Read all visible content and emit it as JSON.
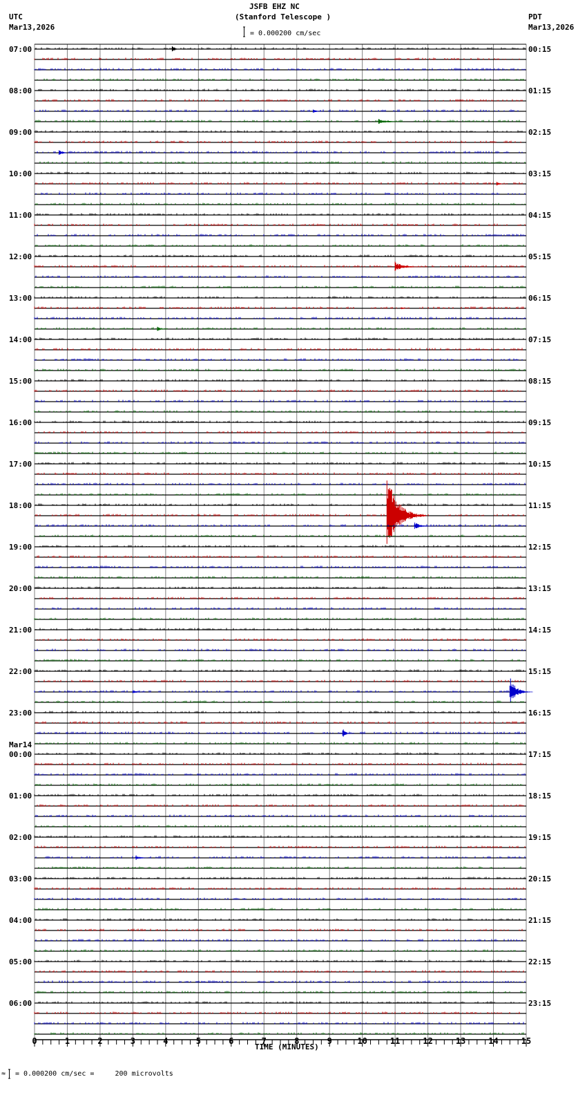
{
  "header": {
    "station": "JSFB EHZ NC",
    "site": "(Stanford Telescope )",
    "scale_label": "= 0.000200 cm/sec",
    "left_tz": "UTC",
    "left_date": "Mar13,2026",
    "right_tz": "PDT",
    "right_date": "Mar13,2026"
  },
  "footer": {
    "scale_note": "= 0.000200 cm/sec =     200 microvolts",
    "prefix": "≈"
  },
  "colors": {
    "trace_cycle": [
      "#000000",
      "#cc0000",
      "#0000cc",
      "#006600"
    ],
    "baseline": "#000000",
    "grid": "#808080"
  },
  "chart_data": {
    "type": "line",
    "title": "JSFB EHZ NC (Stanford Telescope )",
    "subtitle": "Helicorder seismogram, 15-minute lines",
    "xlabel": "TIME (MINUTES)",
    "ylabel": "",
    "x_ticks": [
      "0",
      "1",
      "2",
      "3",
      "4",
      "5",
      "6",
      "7",
      "8",
      "9",
      "10",
      "11",
      "12",
      "13",
      "14",
      "15"
    ],
    "xlim": [
      0,
      15
    ],
    "minor_ticks_per_minute": 4,
    "grid": true,
    "rows_per_hour": 4,
    "row_count": 96,
    "left_hour_labels": [
      "07:00",
      "08:00",
      "09:00",
      "10:00",
      "11:00",
      "12:00",
      "13:00",
      "14:00",
      "15:00",
      "16:00",
      "17:00",
      "18:00",
      "19:00",
      "20:00",
      "21:00",
      "22:00",
      "23:00",
      "00:00",
      "01:00",
      "02:00",
      "03:00",
      "04:00",
      "05:00",
      "06:00"
    ],
    "date_change_label": {
      "before_hour": "00:00",
      "text": "Mar14"
    },
    "right_hour_labels": [
      "00:15",
      "01:15",
      "02:15",
      "03:15",
      "04:15",
      "05:15",
      "06:15",
      "07:15",
      "08:15",
      "09:15",
      "10:15",
      "11:15",
      "12:15",
      "13:15",
      "14:15",
      "15:15",
      "16:15",
      "17:15",
      "18:15",
      "19:15",
      "20:15",
      "21:15",
      "22:15",
      "23:15"
    ],
    "events": [
      {
        "row": 0,
        "minute": 4.2,
        "amplitude": 6,
        "duration": 0.3,
        "note": "small spike"
      },
      {
        "row": 6,
        "minute": 8.5,
        "amplitude": 3,
        "duration": 0.4
      },
      {
        "row": 7,
        "minute": 10.5,
        "amplitude": 4,
        "duration": 1.0
      },
      {
        "row": 10,
        "minute": 0.75,
        "amplitude": 5,
        "duration": 0.4
      },
      {
        "row": 13,
        "minute": 14.1,
        "amplitude": 3,
        "duration": 0.4
      },
      {
        "row": 21,
        "minute": 11.0,
        "amplitude": 8,
        "duration": 1.0
      },
      {
        "row": 25,
        "minute": 11.2,
        "amplitude": 3,
        "duration": 0.2
      },
      {
        "row": 27,
        "minute": 3.75,
        "amplitude": 4,
        "duration": 0.4
      },
      {
        "row": 45,
        "minute": 10.75,
        "amplitude": 65,
        "duration": 1.2,
        "note": "large earthquake"
      },
      {
        "row": 46,
        "minute": 11.6,
        "amplitude": 6,
        "duration": 0.7
      },
      {
        "row": 62,
        "minute": 14.5,
        "amplitude": 22,
        "duration": 0.7
      },
      {
        "row": 62,
        "minute": 3.0,
        "amplitude": 3,
        "duration": 0.4
      },
      {
        "row": 66,
        "minute": 9.4,
        "amplitude": 9,
        "duration": 0.3
      },
      {
        "row": 78,
        "minute": 3.1,
        "amplitude": 4,
        "duration": 0.5
      }
    ]
  }
}
